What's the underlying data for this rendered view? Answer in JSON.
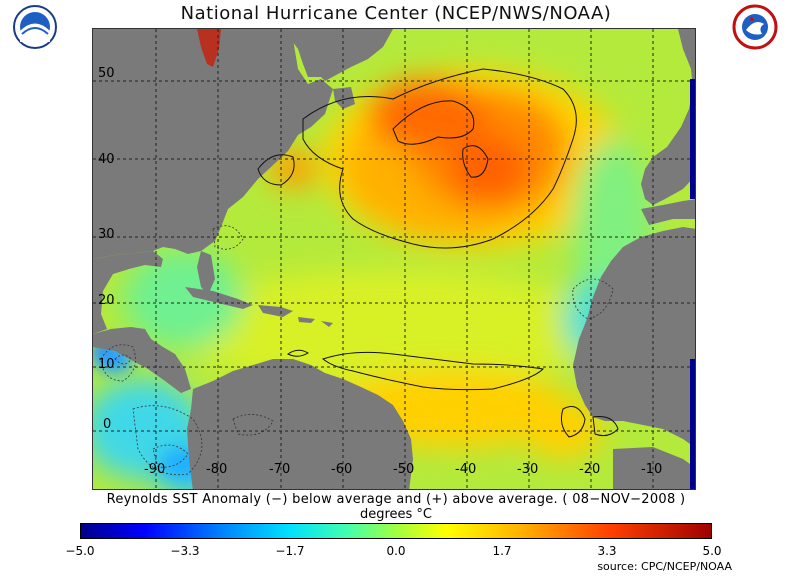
{
  "title": "National Hurricane Center (NCEP/NWS/NOAA)",
  "logos": {
    "left": "noaa-logo",
    "right": "nws-logo"
  },
  "map": {
    "lat_labels": [
      "50",
      "40",
      "30",
      "20",
      "10",
      "0"
    ],
    "lon_labels": [
      "-90",
      "-80",
      "-70",
      "-60",
      "-50",
      "-40",
      "-30",
      "-20",
      "-10"
    ]
  },
  "caption": "Reynolds SST Anomaly (−) below average and (+) above average. ( 08−NOV−2008 )",
  "units": "degrees °C",
  "colorbar": {
    "labels": [
      "−5.0",
      "−3.3",
      "−1.7",
      "0.0",
      "1.7",
      "3.3",
      "5.0"
    ],
    "values": [
      -5.0,
      -3.3,
      -1.7,
      0.0,
      1.7,
      3.3,
      5.0
    ]
  },
  "source": "source: CPC/NCEP/NOAA",
  "colors": {
    "land": "#7a7a7a",
    "ocean_base": "#b8ec3a",
    "warm": "#ff5a00",
    "cool": "#2ad0ff"
  }
}
